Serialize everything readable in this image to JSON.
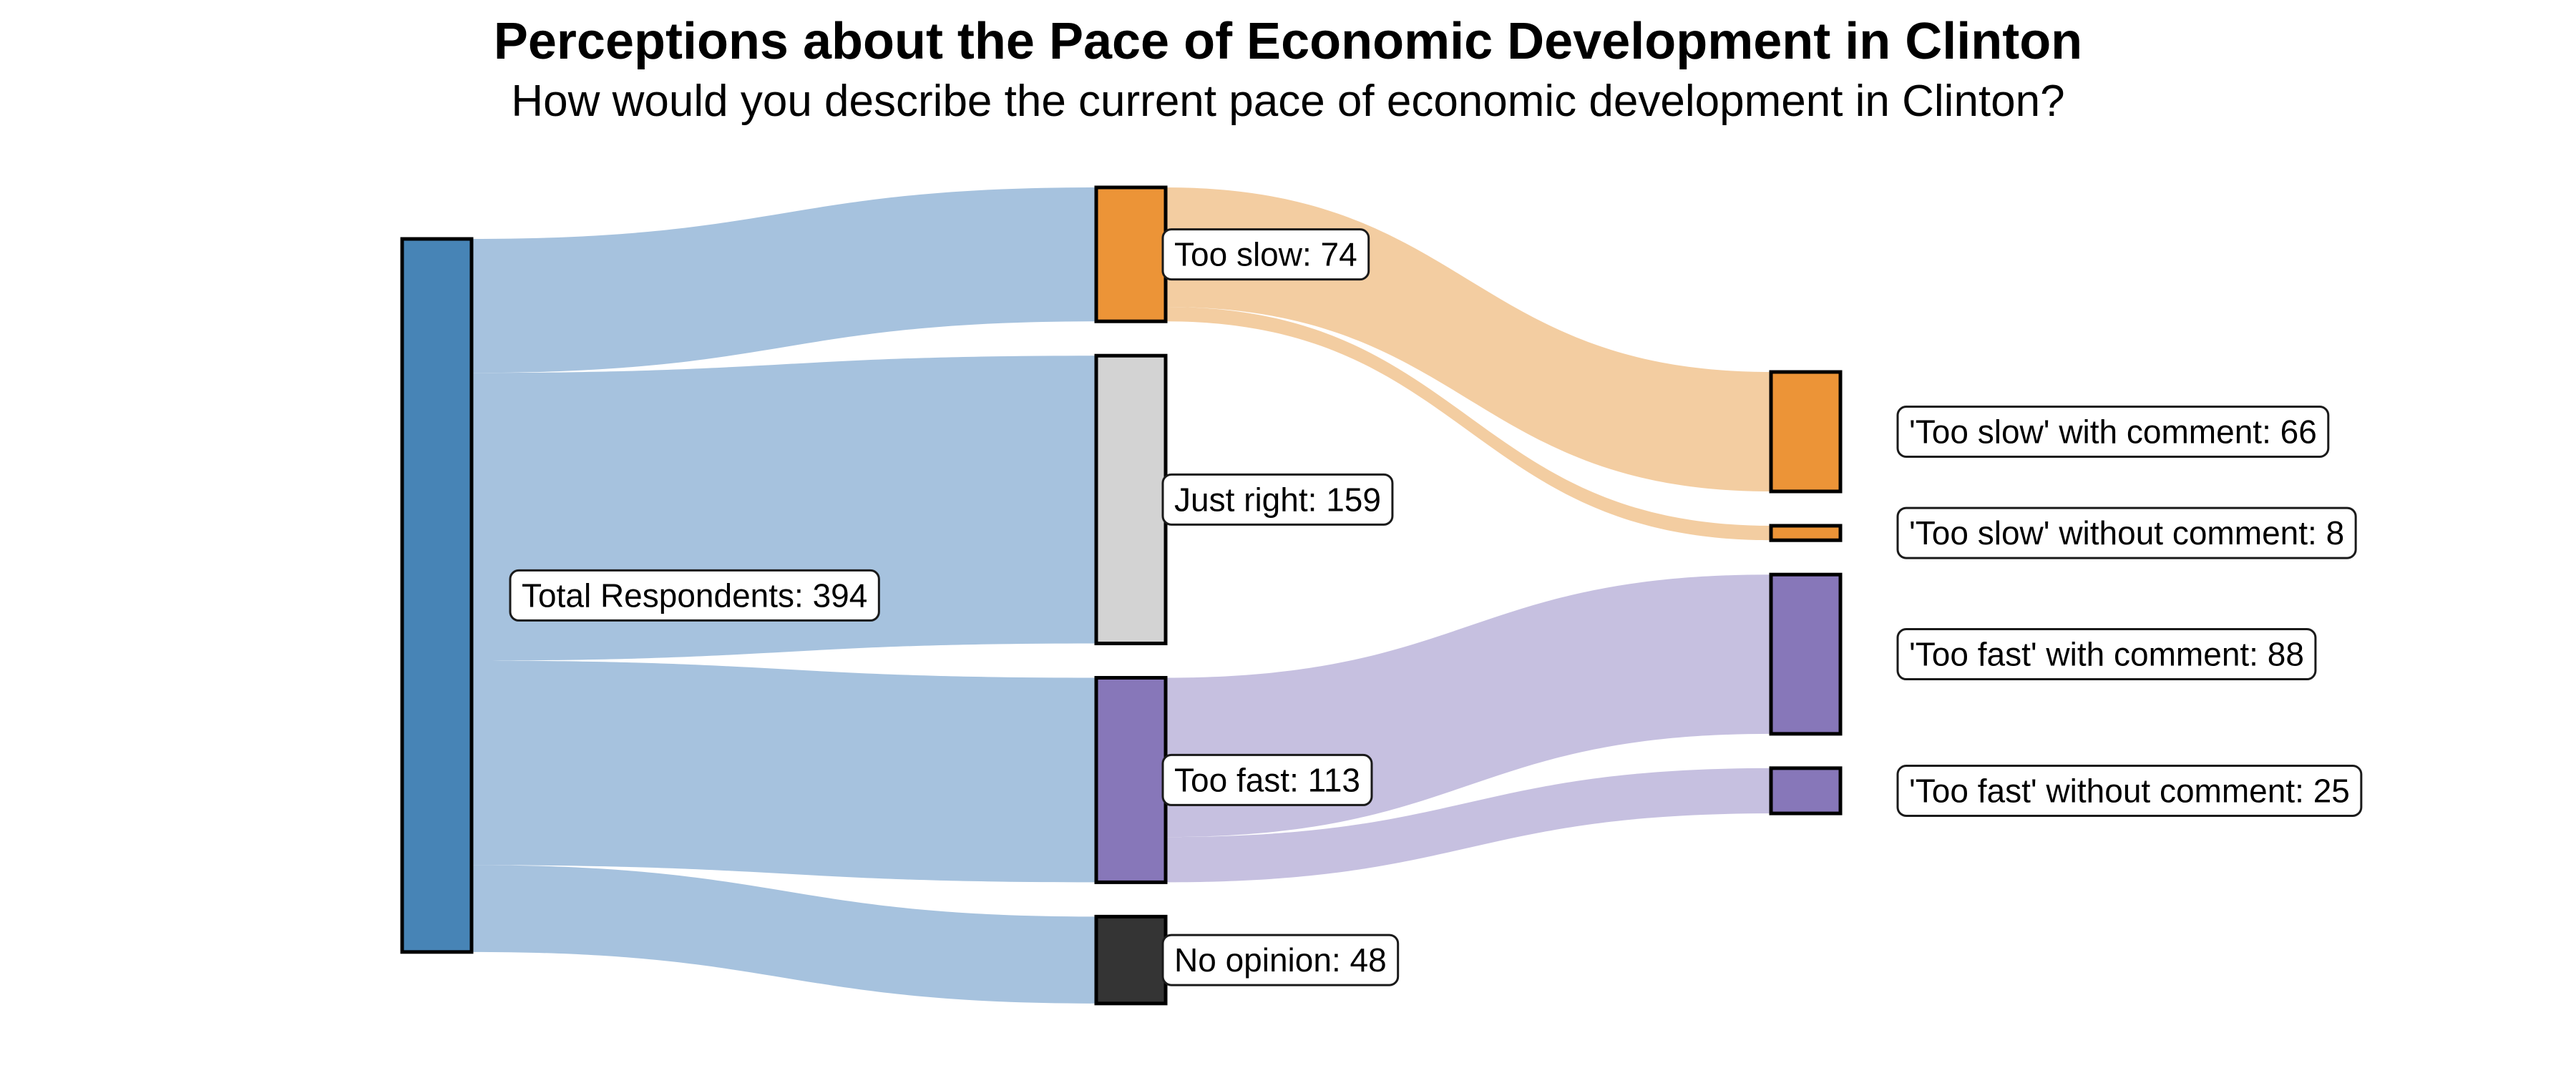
{
  "title": "Perceptions about the Pace of Economic Development in Clinton",
  "subtitle": "How would you describe the current pace of economic development in Clinton?",
  "chart_data": {
    "type": "sankey",
    "unit": "respondents",
    "total_respondents": 394,
    "nodes": [
      {
        "id": "total",
        "label": "Total Respondents: 394",
        "value": 394,
        "column": 0,
        "color": "#4784b6"
      },
      {
        "id": "too_slow",
        "label": "Too slow: 74",
        "value": 74,
        "column": 1,
        "color": "#ec9437"
      },
      {
        "id": "just_right",
        "label": "Just right: 159",
        "value": 159,
        "column": 1,
        "color": "#d3d3d3"
      },
      {
        "id": "too_fast",
        "label": "Too fast: 113",
        "value": 113,
        "column": 1,
        "color": "#8777b9"
      },
      {
        "id": "no_opinion",
        "label": "No opinion: 48",
        "value": 48,
        "column": 1,
        "color": "#343434"
      },
      {
        "id": "slow_with",
        "label": "'Too slow' with comment: 66",
        "value": 66,
        "column": 2,
        "color": "#ec9437"
      },
      {
        "id": "slow_without",
        "label": "'Too slow' without comment: 8",
        "value": 8,
        "column": 2,
        "color": "#ec9437"
      },
      {
        "id": "fast_with",
        "label": "'Too fast' with comment: 88",
        "value": 88,
        "column": 2,
        "color": "#8777b9"
      },
      {
        "id": "fast_without",
        "label": "'Too fast' without comment: 25",
        "value": 25,
        "column": 2,
        "color": "#8777b9"
      }
    ],
    "links": [
      {
        "source": "total",
        "target": "too_slow",
        "value": 74,
        "color": "#a6c2de"
      },
      {
        "source": "total",
        "target": "just_right",
        "value": 159,
        "color": "#a6c2de"
      },
      {
        "source": "total",
        "target": "too_fast",
        "value": 113,
        "color": "#a6c2de"
      },
      {
        "source": "total",
        "target": "no_opinion",
        "value": 48,
        "color": "#a6c2de"
      },
      {
        "source": "too_slow",
        "target": "slow_with",
        "value": 66,
        "color": "#f3cda1"
      },
      {
        "source": "too_slow",
        "target": "slow_without",
        "value": 8,
        "color": "#f3cda1"
      },
      {
        "source": "too_fast",
        "target": "fast_with",
        "value": 88,
        "color": "#c6c0e0"
      },
      {
        "source": "too_fast",
        "target": "fast_without",
        "value": 25,
        "color": "#c6c0e0"
      }
    ]
  }
}
